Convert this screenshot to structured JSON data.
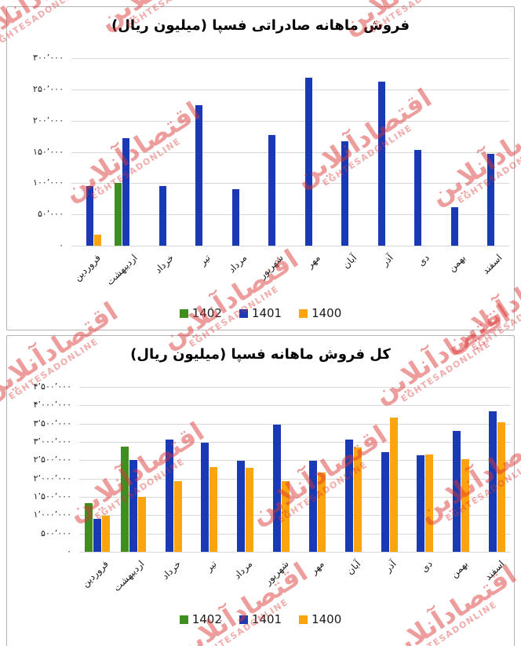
{
  "watermark": {
    "fa": "اقتصادآنلاین",
    "en": "EGHTESADONLINE"
  },
  "colors": {
    "y1402": "#3f8f1f",
    "y1401": "#1a3ab5",
    "y1400": "#faa50f",
    "grid": "#d8d8d8",
    "watermark": "#dd3434"
  },
  "chart_data": [
    {
      "type": "bar",
      "title": "فروش ماهانه صادراتی فسپا (میلیون ریال)",
      "categories": [
        "فروردین",
        "اردیبهشت",
        "خرداد",
        "تیر",
        "مرداد",
        "شهریور",
        "مهر",
        "آبان",
        "آذر",
        "دی",
        "بهمن",
        "اسفند"
      ],
      "series": [
        {
          "name": "1402",
          "color": "#3f8f1f",
          "values": [
            null,
            100000,
            null,
            null,
            null,
            null,
            null,
            null,
            null,
            null,
            null,
            null
          ]
        },
        {
          "name": "1401",
          "color": "#1a3ab5",
          "values": [
            95000,
            172000,
            96000,
            225000,
            90000,
            177000,
            268000,
            167000,
            262000,
            153000,
            61000,
            147000
          ]
        },
        {
          "name": "1400",
          "color": "#faa50f",
          "values": [
            17000,
            null,
            null,
            null,
            null,
            null,
            null,
            null,
            null,
            null,
            null,
            null
          ]
        }
      ],
      "ylim": [
        0,
        300000
      ],
      "y_tick_labels": [
        "۳۰۰’۰۰۰",
        "۲۵۰’۰۰۰",
        "۲۰۰’۰۰۰",
        "۱۵۰’۰۰۰",
        "۱۰۰’۰۰۰",
        "۵۰’۰۰۰",
        "۰"
      ],
      "grid": "horizontal",
      "legend_position": "bottom"
    },
    {
      "type": "bar",
      "title": "کل فروش ماهانه فسپا (میلیون ریال)",
      "categories": [
        "فروردین",
        "اردیبهشت",
        "خرداد",
        "تیر",
        "مرداد",
        "شهریور",
        "مهر",
        "آبان",
        "آذر",
        "دی",
        "بهمن",
        "اسفند"
      ],
      "series": [
        {
          "name": "1402",
          "color": "#3f8f1f",
          "values": [
            1320000,
            2870000,
            null,
            null,
            null,
            null,
            null,
            null,
            null,
            null,
            null,
            null
          ]
        },
        {
          "name": "1401",
          "color": "#1a3ab5",
          "values": [
            890000,
            2510000,
            3060000,
            2980000,
            2480000,
            3470000,
            2480000,
            3060000,
            2730000,
            2640000,
            3310000,
            3840000
          ]
        },
        {
          "name": "1400",
          "color": "#faa50f",
          "values": [
            990000,
            1490000,
            1920000,
            2320000,
            2300000,
            1920000,
            2160000,
            2840000,
            3660000,
            2660000,
            2520000,
            3540000
          ]
        }
      ],
      "ylim": [
        0,
        4500000
      ],
      "y_tick_labels": [
        "۴’۵۰۰’۰۰۰",
        "۴’۰۰۰’۰۰۰",
        "۳’۵۰۰’۰۰۰",
        "۳’۰۰۰’۰۰۰",
        "۲’۵۰۰’۰۰۰",
        "۲’۰۰۰’۰۰۰",
        "۱’۵۰۰’۰۰۰",
        "۱’۰۰۰’۰۰۰",
        "۵۰۰’۰۰۰",
        "۰"
      ],
      "grid": "horizontal",
      "legend_position": "bottom"
    }
  ]
}
